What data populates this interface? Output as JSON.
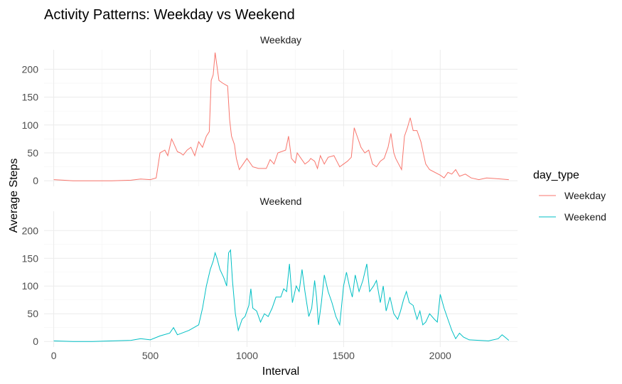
{
  "chart_data": {
    "type": "line",
    "title": "Activity Patterns: Weekday vs Weekend",
    "xlabel": "Interval",
    "ylabel": "Average Steps",
    "xlim": [
      -50,
      2400
    ],
    "ylim": [
      -10,
      235
    ],
    "x_ticks": [
      0,
      500,
      1000,
      1500,
      2000
    ],
    "y_ticks": [
      0,
      50,
      100,
      150,
      200
    ],
    "grid": true,
    "legend": {
      "title": "day_type",
      "position": "right"
    },
    "panels": [
      {
        "label": "Weekday",
        "series": "Weekday",
        "color": "#F8766D",
        "points": [
          [
            0,
            2
          ],
          [
            50,
            1
          ],
          [
            100,
            0
          ],
          [
            200,
            0
          ],
          [
            300,
            0
          ],
          [
            400,
            1
          ],
          [
            450,
            3
          ],
          [
            500,
            2
          ],
          [
            530,
            5
          ],
          [
            550,
            50
          ],
          [
            575,
            55
          ],
          [
            590,
            45
          ],
          [
            610,
            75
          ],
          [
            620,
            68
          ],
          [
            640,
            52
          ],
          [
            655,
            50
          ],
          [
            670,
            46
          ],
          [
            690,
            55
          ],
          [
            710,
            60
          ],
          [
            730,
            45
          ],
          [
            750,
            70
          ],
          [
            770,
            60
          ],
          [
            790,
            80
          ],
          [
            805,
            88
          ],
          [
            815,
            180
          ],
          [
            825,
            190
          ],
          [
            835,
            230
          ],
          [
            845,
            205
          ],
          [
            855,
            180
          ],
          [
            875,
            175
          ],
          [
            900,
            170
          ],
          [
            910,
            110
          ],
          [
            920,
            80
          ],
          [
            935,
            65
          ],
          [
            945,
            40
          ],
          [
            960,
            20
          ],
          [
            980,
            30
          ],
          [
            1000,
            40
          ],
          [
            1010,
            35
          ],
          [
            1030,
            25
          ],
          [
            1060,
            22
          ],
          [
            1100,
            22
          ],
          [
            1120,
            38
          ],
          [
            1140,
            30
          ],
          [
            1160,
            50
          ],
          [
            1200,
            55
          ],
          [
            1215,
            80
          ],
          [
            1230,
            40
          ],
          [
            1250,
            32
          ],
          [
            1260,
            50
          ],
          [
            1280,
            40
          ],
          [
            1300,
            30
          ],
          [
            1320,
            35
          ],
          [
            1330,
            40
          ],
          [
            1350,
            35
          ],
          [
            1365,
            22
          ],
          [
            1380,
            45
          ],
          [
            1400,
            30
          ],
          [
            1420,
            42
          ],
          [
            1450,
            45
          ],
          [
            1465,
            35
          ],
          [
            1480,
            25
          ],
          [
            1500,
            30
          ],
          [
            1520,
            35
          ],
          [
            1540,
            42
          ],
          [
            1555,
            95
          ],
          [
            1570,
            80
          ],
          [
            1590,
            60
          ],
          [
            1610,
            50
          ],
          [
            1630,
            55
          ],
          [
            1650,
            30
          ],
          [
            1670,
            25
          ],
          [
            1690,
            35
          ],
          [
            1710,
            40
          ],
          [
            1730,
            60
          ],
          [
            1745,
            85
          ],
          [
            1760,
            50
          ],
          [
            1770,
            40
          ],
          [
            1785,
            30
          ],
          [
            1800,
            20
          ],
          [
            1815,
            80
          ],
          [
            1830,
            95
          ],
          [
            1845,
            113
          ],
          [
            1860,
            90
          ],
          [
            1880,
            90
          ],
          [
            1900,
            70
          ],
          [
            1915,
            45
          ],
          [
            1925,
            30
          ],
          [
            1945,
            20
          ],
          [
            2000,
            10
          ],
          [
            2020,
            5
          ],
          [
            2040,
            15
          ],
          [
            2060,
            12
          ],
          [
            2080,
            20
          ],
          [
            2100,
            8
          ],
          [
            2130,
            12
          ],
          [
            2160,
            5
          ],
          [
            2200,
            2
          ],
          [
            2240,
            5
          ],
          [
            2280,
            4
          ],
          [
            2355,
            2
          ]
        ]
      },
      {
        "label": "Weekend",
        "series": "Weekend",
        "color": "#00BFC4",
        "points": [
          [
            0,
            1
          ],
          [
            100,
            0
          ],
          [
            200,
            0
          ],
          [
            300,
            1
          ],
          [
            400,
            2
          ],
          [
            450,
            5
          ],
          [
            500,
            3
          ],
          [
            550,
            10
          ],
          [
            600,
            15
          ],
          [
            620,
            25
          ],
          [
            640,
            12
          ],
          [
            700,
            20
          ],
          [
            750,
            30
          ],
          [
            770,
            60
          ],
          [
            790,
            100
          ],
          [
            810,
            130
          ],
          [
            825,
            145
          ],
          [
            835,
            160
          ],
          [
            845,
            150
          ],
          [
            860,
            130
          ],
          [
            880,
            115
          ],
          [
            895,
            100
          ],
          [
            905,
            160
          ],
          [
            915,
            165
          ],
          [
            925,
            110
          ],
          [
            940,
            50
          ],
          [
            955,
            20
          ],
          [
            975,
            40
          ],
          [
            990,
            45
          ],
          [
            1010,
            65
          ],
          [
            1020,
            95
          ],
          [
            1030,
            60
          ],
          [
            1050,
            55
          ],
          [
            1070,
            35
          ],
          [
            1090,
            50
          ],
          [
            1110,
            45
          ],
          [
            1130,
            60
          ],
          [
            1150,
            80
          ],
          [
            1175,
            80
          ],
          [
            1190,
            95
          ],
          [
            1205,
            90
          ],
          [
            1220,
            140
          ],
          [
            1235,
            70
          ],
          [
            1255,
            100
          ],
          [
            1270,
            90
          ],
          [
            1285,
            130
          ],
          [
            1300,
            90
          ],
          [
            1320,
            45
          ],
          [
            1335,
            60
          ],
          [
            1350,
            110
          ],
          [
            1360,
            80
          ],
          [
            1370,
            30
          ],
          [
            1385,
            70
          ],
          [
            1400,
            120
          ],
          [
            1420,
            90
          ],
          [
            1440,
            70
          ],
          [
            1460,
            45
          ],
          [
            1480,
            30
          ],
          [
            1500,
            100
          ],
          [
            1515,
            125
          ],
          [
            1530,
            100
          ],
          [
            1545,
            80
          ],
          [
            1560,
            120
          ],
          [
            1580,
            90
          ],
          [
            1600,
            110
          ],
          [
            1620,
            140
          ],
          [
            1635,
            90
          ],
          [
            1655,
            100
          ],
          [
            1670,
            110
          ],
          [
            1690,
            70
          ],
          [
            1705,
            100
          ],
          [
            1720,
            55
          ],
          [
            1740,
            80
          ],
          [
            1760,
            50
          ],
          [
            1780,
            40
          ],
          [
            1795,
            55
          ],
          [
            1810,
            75
          ],
          [
            1825,
            90
          ],
          [
            1840,
            70
          ],
          [
            1860,
            65
          ],
          [
            1880,
            40
          ],
          [
            1895,
            55
          ],
          [
            1910,
            30
          ],
          [
            1925,
            35
          ],
          [
            1945,
            50
          ],
          [
            1970,
            40
          ],
          [
            1985,
            35
          ],
          [
            2000,
            85
          ],
          [
            2020,
            60
          ],
          [
            2040,
            40
          ],
          [
            2060,
            20
          ],
          [
            2080,
            5
          ],
          [
            2100,
            15
          ],
          [
            2120,
            8
          ],
          [
            2150,
            3
          ],
          [
            2200,
            2
          ],
          [
            2250,
            1
          ],
          [
            2300,
            5
          ],
          [
            2320,
            12
          ],
          [
            2335,
            8
          ],
          [
            2355,
            2
          ]
        ]
      }
    ]
  }
}
